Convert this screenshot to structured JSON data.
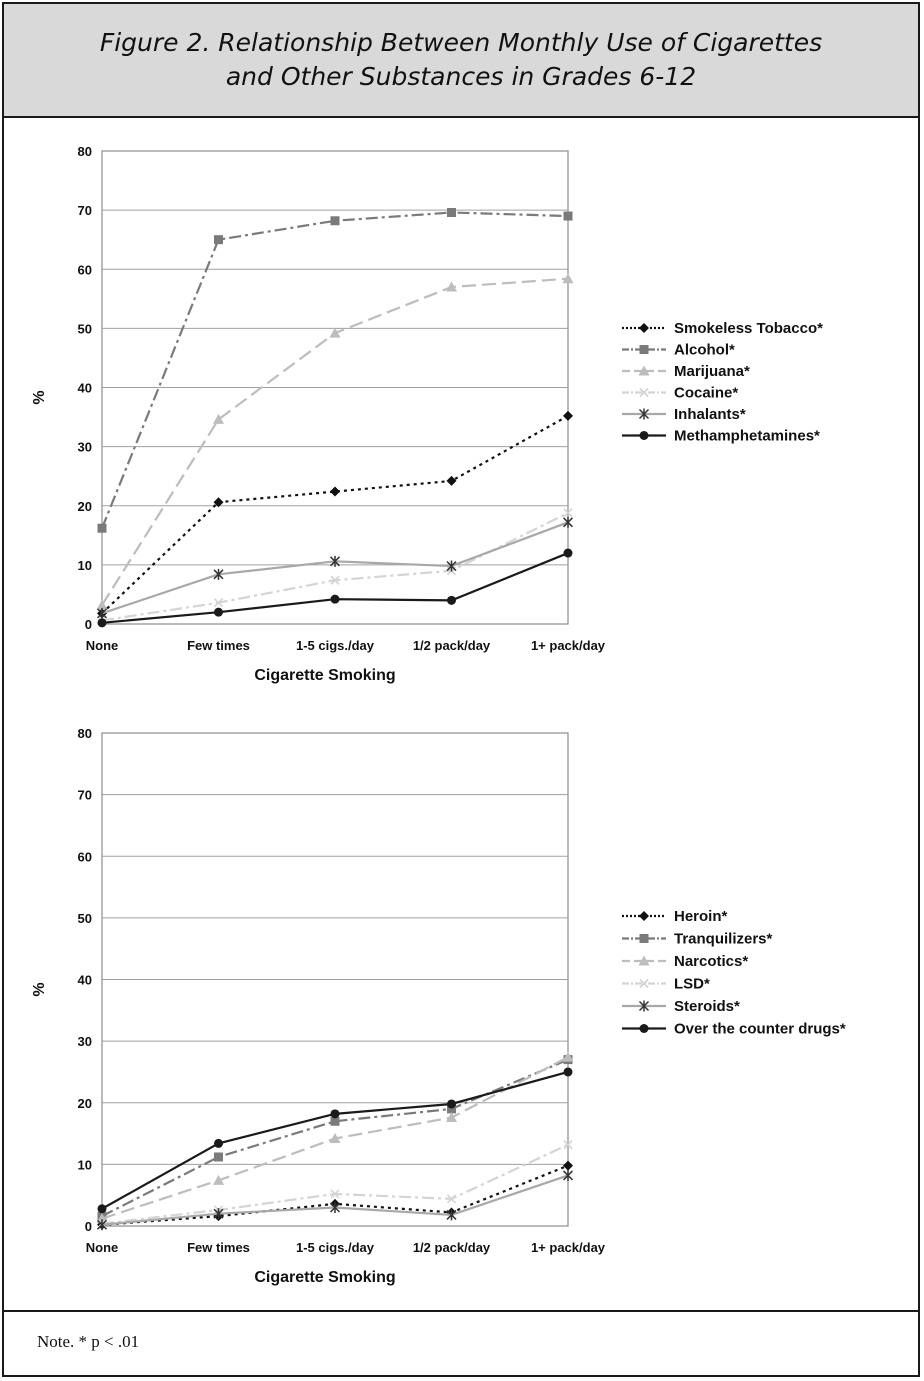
{
  "header": {
    "line1": "Figure 2. Relationship Between Monthly Use of Cigarettes",
    "line2": "and Other Substances in Grades 6-12"
  },
  "note": "Note. * p < .01",
  "chart_data": [
    {
      "type": "line",
      "xlabel": "Cigarette Smoking",
      "ylabel": "%",
      "ylim": [
        0,
        80
      ],
      "yticks": [
        0,
        10,
        20,
        30,
        40,
        50,
        60,
        70,
        80
      ],
      "categories": [
        "None",
        "Few times",
        "1-5 cigs./day",
        "1/2 pack/day",
        "1+ pack/day"
      ],
      "grid": true,
      "legend_position": "right",
      "series": [
        {
          "name": "Smokeless Tobacco*",
          "values": [
            1.8,
            20.6,
            22.4,
            24.2,
            35.2
          ],
          "color": "#111111",
          "dash": "3,4",
          "marker": "diamond"
        },
        {
          "name": "Alcohol*",
          "values": [
            16.2,
            65,
            68.2,
            69.6,
            69
          ],
          "color": "#7a7a7a",
          "dash": "12,4,3,4",
          "marker": "square"
        },
        {
          "name": "Marijuana*",
          "values": [
            3.2,
            34.6,
            49.2,
            57,
            58.4
          ],
          "color": "#bdbdbd",
          "dash": "14,6",
          "marker": "triangle"
        },
        {
          "name": "Cocaine*",
          "values": [
            0.6,
            3.6,
            7.4,
            9,
            18.8
          ],
          "color": "#d4d4d4",
          "dash": "12,4,3,4",
          "marker": "x"
        },
        {
          "name": "Inhalants*",
          "values": [
            1.8,
            8.4,
            10.6,
            9.8,
            17.2
          ],
          "color": "#a8a8a8",
          "dash": "",
          "marker": "star"
        },
        {
          "name": "Methamphetamines*",
          "values": [
            0.2,
            2,
            4.2,
            4,
            12
          ],
          "color": "#1a1a1a",
          "dash": "",
          "marker": "circle"
        }
      ]
    },
    {
      "type": "line",
      "xlabel": "Cigarette Smoking",
      "ylabel": "%",
      "ylim": [
        0,
        80
      ],
      "yticks": [
        0,
        10,
        20,
        30,
        40,
        50,
        60,
        70,
        80
      ],
      "categories": [
        "None",
        "Few times",
        "1-5 cigs./day",
        "1/2 pack/day",
        "1+ pack/day"
      ],
      "grid": true,
      "legend_position": "right",
      "series": [
        {
          "name": "Heroin*",
          "values": [
            0.2,
            1.6,
            3.6,
            2.2,
            9.8
          ],
          "color": "#111111",
          "dash": "3,4",
          "marker": "diamond"
        },
        {
          "name": "Tranquilizers*",
          "values": [
            1.6,
            11.2,
            17,
            19,
            27
          ],
          "color": "#7a7a7a",
          "dash": "12,4,3,4",
          "marker": "square"
        },
        {
          "name": "Narcotics*",
          "values": [
            1.2,
            7.4,
            14.2,
            17.6,
            27.4
          ],
          "color": "#bdbdbd",
          "dash": "14,6",
          "marker": "triangle"
        },
        {
          "name": "LSD*",
          "values": [
            0.4,
            2.6,
            5.2,
            4.4,
            13.2
          ],
          "color": "#d4d4d4",
          "dash": "12,4,3,4",
          "marker": "x"
        },
        {
          "name": "Steroids*",
          "values": [
            0.2,
            2,
            3,
            1.8,
            8.2
          ],
          "color": "#a8a8a8",
          "dash": "",
          "marker": "star"
        },
        {
          "name": "Over the counter drugs*",
          "values": [
            2.8,
            13.4,
            18.2,
            19.8,
            25
          ],
          "color": "#1a1a1a",
          "dash": "",
          "marker": "circle"
        }
      ]
    }
  ]
}
